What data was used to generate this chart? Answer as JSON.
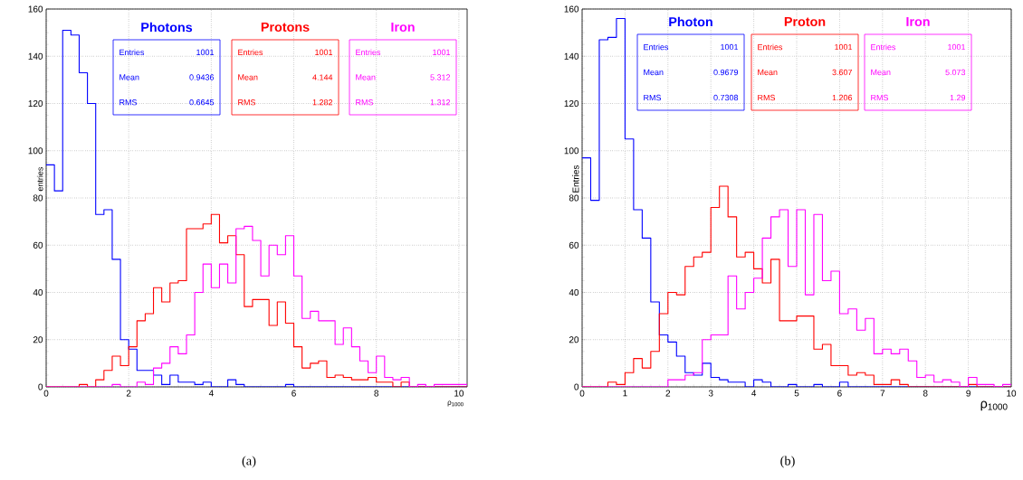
{
  "chart_data": [
    {
      "type": "histogram",
      "xlabel": "ρ$_{1000}$",
      "ylabel": "entries",
      "bins": [
        0,
        0.2,
        0.4,
        0.6,
        0.8,
        1,
        1.2,
        1.4,
        1.6,
        1.8,
        2,
        2.2,
        2.4,
        2.6,
        2.8,
        3,
        3.2,
        3.4,
        3.6,
        3.8,
        4,
        4.2,
        4.4,
        4.6,
        4.8,
        5,
        5.2,
        5.4,
        5.6,
        5.8,
        6,
        6.2,
        6.4,
        6.6,
        6.8,
        7,
        7.2,
        7.4,
        7.6,
        7.8,
        8,
        8.2,
        8.4,
        8.6,
        8.8,
        9,
        9.2,
        9.4,
        9.6,
        9.8,
        10,
        10.2
      ],
      "series": [
        {
          "name": "Photons",
          "color": "#0000ff",
          "values": [
            94,
            83,
            151,
            149,
            133,
            120,
            73,
            75,
            54,
            20,
            16,
            7,
            7,
            5,
            1,
            5,
            2,
            2,
            1,
            2,
            0,
            0,
            3,
            1,
            0,
            0,
            0,
            0,
            0,
            1,
            0,
            0,
            0,
            0,
            0,
            0,
            0,
            0,
            0,
            0,
            0,
            0,
            0,
            0,
            0,
            0,
            0,
            0,
            0,
            0,
            0
          ]
        },
        {
          "name": "Protons",
          "color": "#ff0000",
          "values": [
            0,
            0,
            0,
            0,
            1,
            0,
            3,
            7,
            13,
            9,
            17,
            28,
            31,
            42,
            36,
            44,
            45,
            67,
            67,
            69,
            73,
            61,
            64,
            56,
            34,
            37,
            37,
            26,
            36,
            27,
            17,
            8,
            10,
            11,
            4,
            5,
            4,
            3,
            3,
            4,
            2,
            2,
            0,
            2,
            0,
            0,
            0,
            0,
            0,
            0,
            0
          ]
        },
        {
          "name": "Iron",
          "color": "#ff00ff",
          "values": [
            0,
            0,
            0,
            0,
            0,
            0,
            0,
            0,
            1,
            0,
            0,
            2,
            1,
            8,
            10,
            17,
            14,
            22,
            40,
            52,
            42,
            52,
            44,
            67,
            68,
            62,
            47,
            60,
            56,
            64,
            47,
            29,
            32,
            28,
            28,
            18,
            25,
            17,
            11,
            6,
            13,
            4,
            3,
            4,
            0,
            1,
            0,
            1,
            1,
            1,
            1
          ]
        }
      ],
      "xlim": [
        0,
        10.2
      ],
      "ylim": [
        0,
        160
      ],
      "xticks": [
        0,
        2,
        4,
        6,
        8,
        10
      ],
      "yticks": [
        0,
        20,
        40,
        60,
        80,
        100,
        120,
        140,
        160
      ],
      "grid": true,
      "annotations": [
        "(a)",
        "Entries",
        "1001",
        "Mean",
        "0.9436",
        "RMS",
        "0.6645",
        "Entries",
        "1001",
        "Mean",
        "4.144",
        "RMS",
        "1.282",
        "Entries",
        "1001",
        "Mean",
        "5.312",
        "RMS",
        "1.312"
      ]
    },
    {
      "type": "histogram",
      "xlabel": "ρ$_{1000}$",
      "ylabel": "Entries",
      "bins": [
        0,
        0.2,
        0.4,
        0.6,
        0.8,
        1,
        1.2,
        1.4,
        1.6,
        1.8,
        2,
        2.2,
        2.4,
        2.6,
        2.8,
        3,
        3.2,
        3.4,
        3.6,
        3.8,
        4,
        4.2,
        4.4,
        4.6,
        4.8,
        5,
        5.2,
        5.4,
        5.6,
        5.8,
        6,
        6.2,
        6.4,
        6.6,
        6.8,
        7,
        7.2,
        7.4,
        7.6,
        7.8,
        8,
        8.2,
        8.4,
        8.6,
        8.8,
        9,
        9.2,
        9.4,
        9.6,
        9.8,
        10
      ],
      "series": [
        {
          "name": "Photon",
          "color": "#0000ff",
          "values": [
            97,
            79,
            147,
            148,
            156,
            105,
            75,
            63,
            36,
            22,
            19,
            13,
            6,
            5,
            10,
            4,
            3,
            2,
            2,
            0,
            3,
            2,
            0,
            0,
            1,
            0,
            0,
            1,
            0,
            0,
            2,
            0,
            0,
            0,
            0,
            0,
            0,
            0,
            0,
            0,
            0,
            0,
            0,
            0,
            0,
            0,
            0,
            0,
            0,
            0
          ]
        },
        {
          "name": "Proton",
          "color": "#ff0000",
          "values": [
            0,
            0,
            0,
            2,
            1,
            6,
            12,
            8,
            15,
            31,
            40,
            39,
            51,
            55,
            57,
            76,
            85,
            72,
            55,
            57,
            50,
            44,
            54,
            28,
            28,
            30,
            30,
            16,
            18,
            9,
            9,
            5,
            6,
            5,
            1,
            1,
            3,
            1,
            0,
            0,
            0,
            0,
            0,
            0,
            0,
            1,
            0,
            0,
            0,
            0
          ]
        },
        {
          "name": "Iron",
          "color": "#ff00ff",
          "values": [
            0,
            0,
            0,
            0,
            0,
            0,
            0,
            0,
            0,
            0,
            3,
            3,
            5,
            6,
            20,
            22,
            22,
            47,
            33,
            40,
            46,
            63,
            72,
            75,
            51,
            75,
            39,
            73,
            45,
            49,
            31,
            33,
            24,
            29,
            14,
            16,
            14,
            16,
            11,
            4,
            5,
            2,
            3,
            2,
            0,
            4,
            1,
            1,
            0,
            1
          ]
        }
      ],
      "xlim": [
        0,
        10
      ],
      "ylim": [
        0,
        160
      ],
      "xticks": [
        0,
        1,
        2,
        3,
        4,
        5,
        6,
        7,
        8,
        9,
        10
      ],
      "yticks": [
        0,
        20,
        40,
        60,
        80,
        100,
        120,
        140,
        160
      ],
      "grid": true,
      "annotations": [
        "(b)",
        "Entries",
        "1001",
        "Mean",
        "0.9679",
        "RMS",
        "0.7308",
        "Entries",
        "1001",
        "Mean",
        "3.607",
        "RMS",
        "1.206",
        "Entries",
        "1001",
        "Mean",
        "5.073",
        "RMS",
        "1.29"
      ]
    }
  ]
}
